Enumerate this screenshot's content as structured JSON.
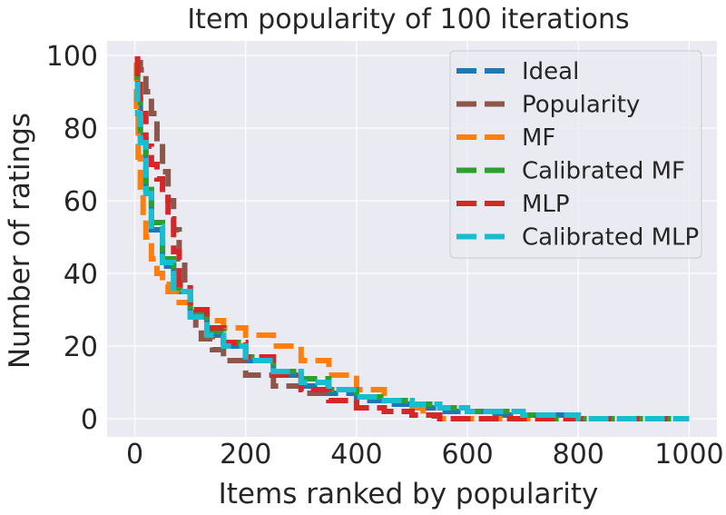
{
  "chart_data": {
    "type": "line",
    "title": "Item popularity of 100 iterations",
    "xlabel": "Items ranked by popularity",
    "ylabel": "Number of ratings",
    "xlim": [
      -50,
      1050
    ],
    "ylim": [
      -5,
      104
    ],
    "xticks": [
      0,
      200,
      400,
      600,
      800,
      1000
    ],
    "yticks": [
      0,
      20,
      40,
      60,
      80,
      100
    ],
    "xtick_labels": [
      "0",
      "200",
      "400",
      "600",
      "800",
      "1000"
    ],
    "ytick_labels": [
      "0",
      "20",
      "40",
      "60",
      "80",
      "100"
    ],
    "grid": true,
    "legend_position": "top-right",
    "series": [
      {
        "name": "Ideal",
        "color": "#1f77b4",
        "x": [
          0,
          5,
          10,
          20,
          30,
          50,
          70,
          100,
          130,
          160,
          200,
          250,
          300,
          350,
          400,
          450,
          500,
          550,
          560,
          600,
          650,
          700,
          780
        ],
        "y": [
          96,
          88,
          78,
          62,
          52,
          42,
          35,
          28,
          23,
          20,
          16,
          12,
          9,
          7,
          5,
          4,
          3,
          3,
          2,
          2,
          1,
          1,
          0
        ]
      },
      {
        "name": "Popularity",
        "color": "#8c564b",
        "x": [
          0,
          5,
          10,
          20,
          30,
          40,
          50,
          60,
          70,
          80,
          90,
          100,
          110,
          120,
          140,
          160,
          200,
          250,
          300,
          350,
          400,
          450,
          500,
          540
        ],
        "y": [
          99,
          98,
          96,
          90,
          84,
          76,
          68,
          60,
          52,
          44,
          36,
          30,
          25,
          22,
          19,
          16,
          12,
          9,
          7,
          5,
          3,
          2,
          1,
          0
        ]
      },
      {
        "name": "MF",
        "color": "#ff7f0e",
        "x": [
          0,
          3,
          6,
          10,
          15,
          20,
          30,
          40,
          50,
          60,
          80,
          100,
          130,
          160,
          200,
          250,
          300,
          350,
          400,
          450,
          500,
          520,
          550,
          600,
          700,
          800,
          1000
        ],
        "y": [
          98,
          85,
          72,
          62,
          55,
          50,
          44,
          40,
          37,
          35,
          32,
          29,
          27,
          25,
          23,
          20,
          16,
          12,
          8,
          5,
          3,
          1,
          0,
          0,
          0,
          0,
          0
        ]
      },
      {
        "name": "Calibrated MF",
        "color": "#2ca02c",
        "x": [
          0,
          5,
          10,
          20,
          30,
          50,
          70,
          100,
          130,
          160,
          200,
          250,
          300,
          350,
          400,
          450,
          500,
          550,
          600,
          650,
          700,
          720,
          800,
          1000
        ],
        "y": [
          98,
          88,
          78,
          64,
          54,
          44,
          36,
          29,
          24,
          21,
          17,
          13,
          11,
          8,
          6,
          5,
          4,
          3,
          2,
          2,
          1,
          0,
          0,
          0
        ]
      },
      {
        "name": "MLP",
        "color": "#d62728",
        "x": [
          0,
          5,
          10,
          20,
          30,
          40,
          50,
          60,
          70,
          80,
          100,
          130,
          160,
          200,
          250,
          300,
          350,
          400,
          450,
          500,
          550,
          600,
          800,
          1000
        ],
        "y": [
          99,
          92,
          84,
          75,
          70,
          66,
          62,
          55,
          46,
          37,
          30,
          25,
          21,
          17,
          12,
          8,
          5,
          3,
          2,
          1,
          0,
          0,
          0,
          0
        ]
      },
      {
        "name": "Calibrated MLP",
        "color": "#17becf",
        "x": [
          0,
          5,
          10,
          20,
          30,
          50,
          70,
          100,
          130,
          160,
          200,
          250,
          300,
          350,
          400,
          450,
          500,
          550,
          600,
          650,
          700,
          750,
          800,
          1000
        ],
        "y": [
          92,
          84,
          76,
          62,
          53,
          43,
          35,
          28,
          23,
          20,
          16,
          13,
          10,
          8,
          6,
          5,
          4,
          3,
          2,
          2,
          1,
          1,
          0,
          0
        ]
      }
    ]
  }
}
